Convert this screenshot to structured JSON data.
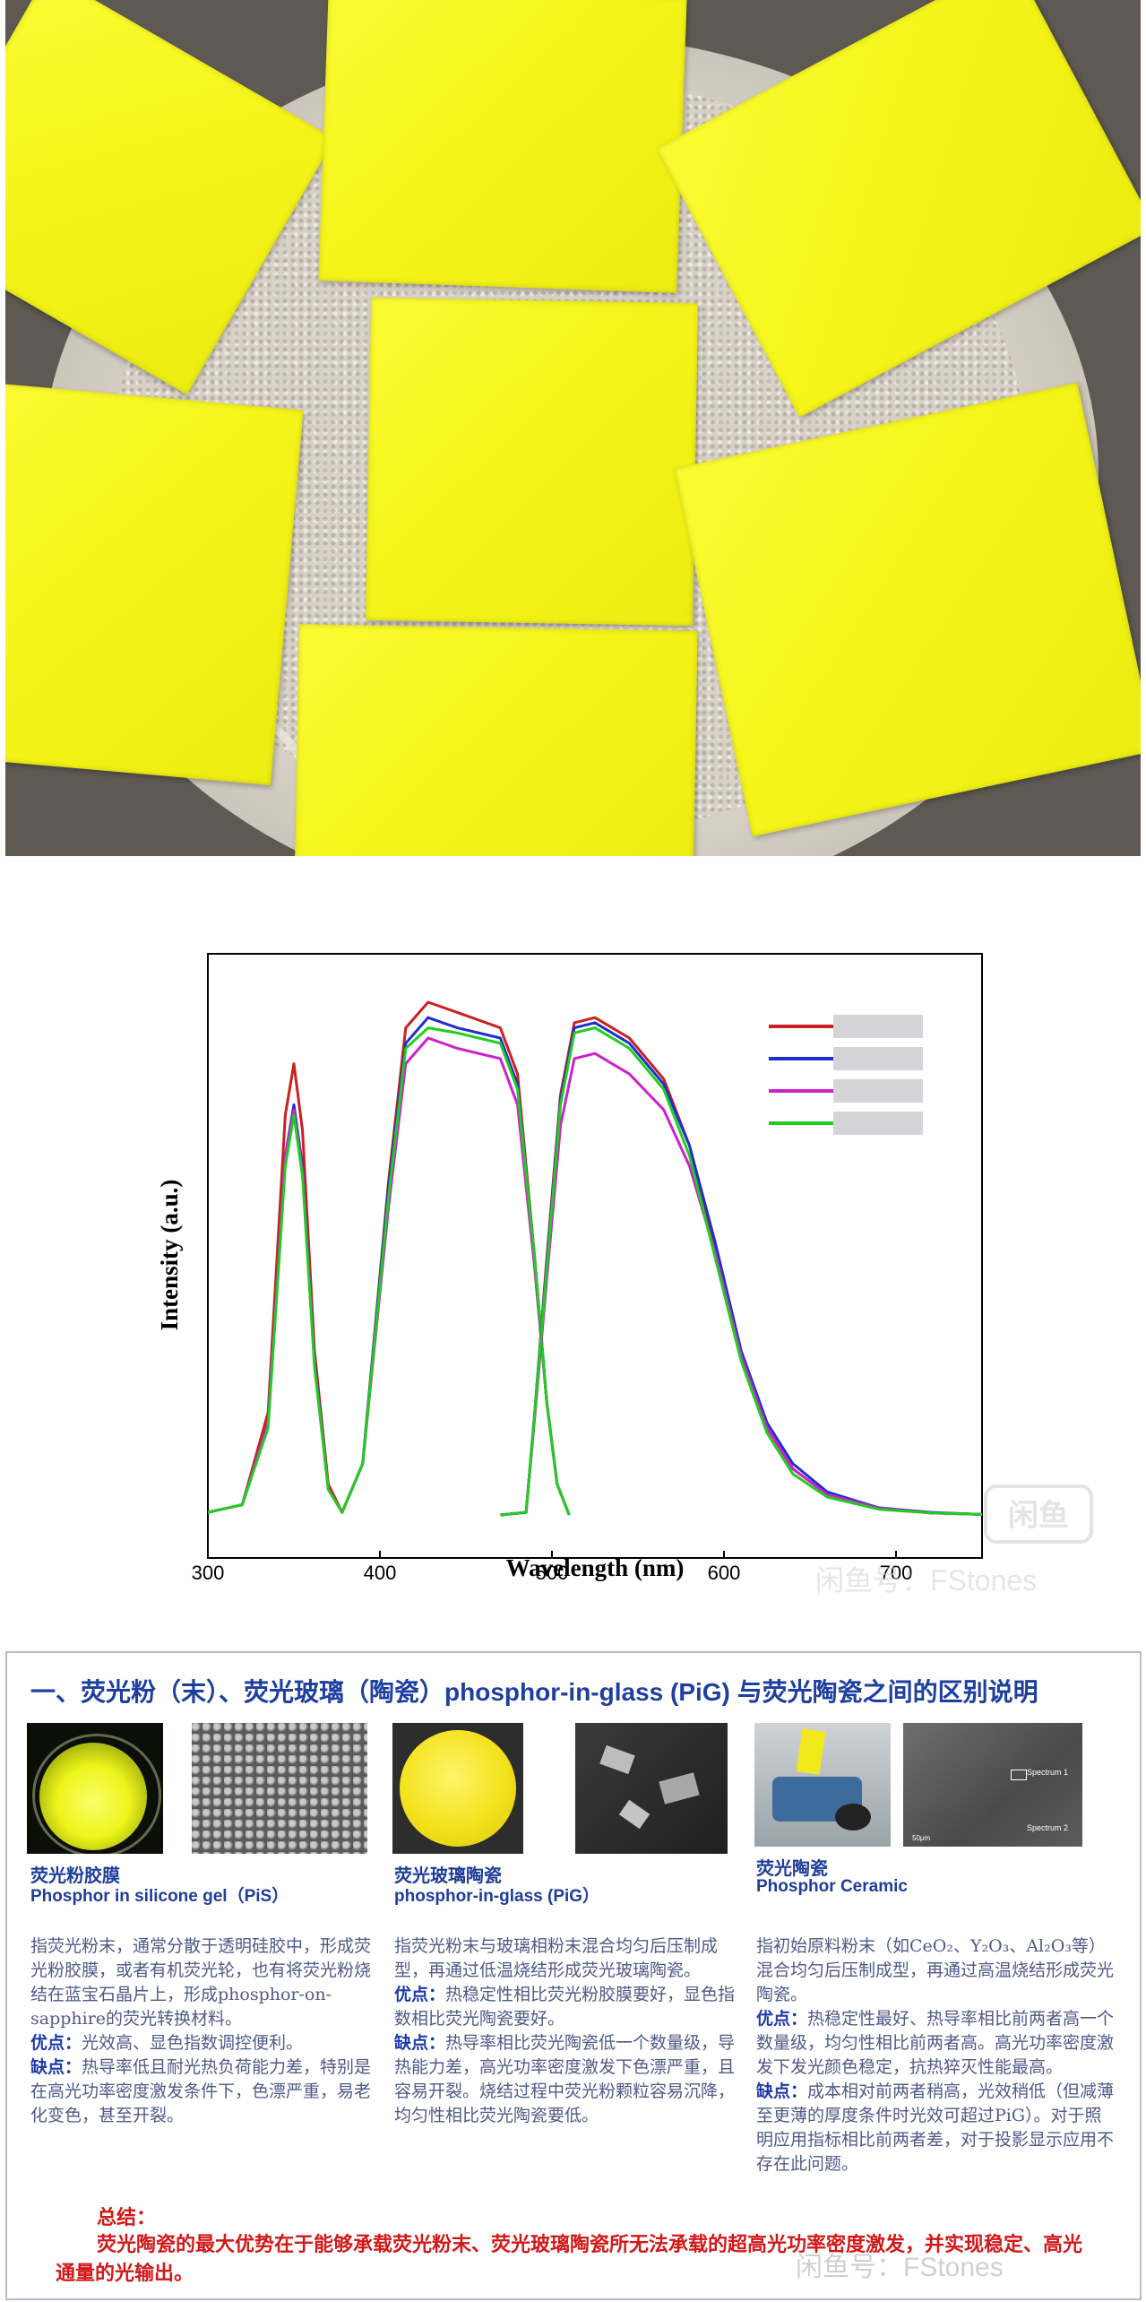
{
  "chart_data": {
    "type": "line",
    "xlabel": "Wavelength (nm)",
    "ylabel": "Intensity (a.u.)",
    "xlim": [
      300,
      750
    ],
    "x_ticks": [
      "300",
      "400",
      "500",
      "600",
      "700"
    ],
    "legend_position": "top-right",
    "legend_labels_blurred": true,
    "series": [
      {
        "color": "#cc1f1f",
        "points": [
          [
            300,
            0.005
          ],
          [
            320,
            0.02
          ],
          [
            335,
            0.2
          ],
          [
            345,
            0.78
          ],
          [
            350,
            0.88
          ],
          [
            355,
            0.75
          ],
          [
            362,
            0.32
          ],
          [
            370,
            0.06
          ],
          [
            378,
            0.005
          ],
          [
            390,
            0.1
          ],
          [
            405,
            0.65
          ],
          [
            415,
            0.95
          ],
          [
            428,
            1.0
          ],
          [
            445,
            0.98
          ],
          [
            470,
            0.95
          ],
          [
            480,
            0.86
          ],
          [
            490,
            0.5
          ],
          [
            497,
            0.22
          ],
          [
            503,
            0.06
          ],
          [
            510,
            0.0
          ]
        ]
      },
      {
        "color": "#1f2fcc",
        "points": [
          [
            300,
            0.005
          ],
          [
            320,
            0.02
          ],
          [
            335,
            0.18
          ],
          [
            345,
            0.7
          ],
          [
            350,
            0.8
          ],
          [
            355,
            0.68
          ],
          [
            362,
            0.3
          ],
          [
            370,
            0.05
          ],
          [
            378,
            0.005
          ],
          [
            390,
            0.1
          ],
          [
            405,
            0.64
          ],
          [
            415,
            0.92
          ],
          [
            428,
            0.97
          ],
          [
            445,
            0.95
          ],
          [
            470,
            0.93
          ],
          [
            480,
            0.84
          ],
          [
            490,
            0.5
          ],
          [
            497,
            0.22
          ],
          [
            503,
            0.06
          ],
          [
            510,
            0.0
          ]
        ]
      },
      {
        "color": "#cc22cc",
        "points": [
          [
            300,
            0.005
          ],
          [
            320,
            0.02
          ],
          [
            335,
            0.18
          ],
          [
            345,
            0.7
          ],
          [
            350,
            0.79
          ],
          [
            355,
            0.67
          ],
          [
            362,
            0.29
          ],
          [
            370,
            0.05
          ],
          [
            378,
            0.005
          ],
          [
            390,
            0.1
          ],
          [
            405,
            0.6
          ],
          [
            415,
            0.88
          ],
          [
            428,
            0.93
          ],
          [
            445,
            0.91
          ],
          [
            470,
            0.89
          ],
          [
            480,
            0.8
          ],
          [
            490,
            0.48
          ],
          [
            497,
            0.22
          ],
          [
            503,
            0.06
          ],
          [
            510,
            0.0
          ]
        ]
      },
      {
        "color": "#22cc22",
        "points": [
          [
            300,
            0.005
          ],
          [
            320,
            0.02
          ],
          [
            335,
            0.17
          ],
          [
            345,
            0.68
          ],
          [
            350,
            0.78
          ],
          [
            355,
            0.66
          ],
          [
            362,
            0.29
          ],
          [
            370,
            0.05
          ],
          [
            378,
            0.005
          ],
          [
            390,
            0.1
          ],
          [
            405,
            0.62
          ],
          [
            415,
            0.91
          ],
          [
            428,
            0.95
          ],
          [
            445,
            0.94
          ],
          [
            470,
            0.92
          ],
          [
            480,
            0.83
          ],
          [
            490,
            0.5
          ],
          [
            497,
            0.22
          ],
          [
            503,
            0.06
          ],
          [
            510,
            0.0
          ]
        ]
      },
      {
        "color": "#cc1f1f",
        "points": [
          [
            470,
            0.0
          ],
          [
            485,
            0.005
          ],
          [
            490,
            0.2
          ],
          [
            497,
            0.5
          ],
          [
            505,
            0.82
          ],
          [
            513,
            0.96
          ],
          [
            525,
            0.97
          ],
          [
            545,
            0.93
          ],
          [
            565,
            0.85
          ],
          [
            580,
            0.72
          ],
          [
            595,
            0.52
          ],
          [
            610,
            0.31
          ],
          [
            625,
            0.17
          ],
          [
            640,
            0.09
          ],
          [
            660,
            0.04
          ],
          [
            690,
            0.012
          ],
          [
            720,
            0.004
          ],
          [
            750,
            0.001
          ]
        ]
      },
      {
        "color": "#1f2fcc",
        "points": [
          [
            470,
            0.0
          ],
          [
            485,
            0.005
          ],
          [
            490,
            0.2
          ],
          [
            497,
            0.49
          ],
          [
            505,
            0.81
          ],
          [
            513,
            0.95
          ],
          [
            525,
            0.96
          ],
          [
            545,
            0.92
          ],
          [
            565,
            0.84
          ],
          [
            580,
            0.72
          ],
          [
            595,
            0.53
          ],
          [
            610,
            0.32
          ],
          [
            625,
            0.18
          ],
          [
            640,
            0.1
          ],
          [
            660,
            0.045
          ],
          [
            690,
            0.014
          ],
          [
            720,
            0.005
          ],
          [
            750,
            0.001
          ]
        ]
      },
      {
        "color": "#cc22cc",
        "points": [
          [
            470,
            0.0
          ],
          [
            485,
            0.005
          ],
          [
            490,
            0.19
          ],
          [
            497,
            0.46
          ],
          [
            505,
            0.76
          ],
          [
            513,
            0.89
          ],
          [
            525,
            0.9
          ],
          [
            545,
            0.86
          ],
          [
            565,
            0.79
          ],
          [
            580,
            0.68
          ],
          [
            595,
            0.51
          ],
          [
            610,
            0.31
          ],
          [
            625,
            0.17
          ],
          [
            640,
            0.09
          ],
          [
            660,
            0.04
          ],
          [
            690,
            0.013
          ],
          [
            720,
            0.004
          ],
          [
            750,
            0.001
          ]
        ]
      },
      {
        "color": "#22cc22",
        "points": [
          [
            470,
            0.0
          ],
          [
            485,
            0.005
          ],
          [
            490,
            0.2
          ],
          [
            497,
            0.48
          ],
          [
            505,
            0.8
          ],
          [
            513,
            0.94
          ],
          [
            525,
            0.95
          ],
          [
            545,
            0.91
          ],
          [
            565,
            0.83
          ],
          [
            580,
            0.7
          ],
          [
            595,
            0.5
          ],
          [
            610,
            0.3
          ],
          [
            625,
            0.16
          ],
          [
            640,
            0.08
          ],
          [
            660,
            0.035
          ],
          [
            690,
            0.011
          ],
          [
            720,
            0.004
          ],
          [
            750,
            0.001
          ]
        ]
      }
    ]
  },
  "chart_watermark": {
    "badge": "闲鱼",
    "text": "闲鱼号：FStones"
  },
  "card": {
    "title": "一、荧光粉（末）、荧光玻璃（陶瓷）phosphor-in-glass (PiG) 与荧光陶瓷之间的区别说明",
    "columns": [
      {
        "name_cn": "荧光粉胶膜",
        "name_en": "Phosphor in silicone gel（PiS）",
        "desc": "指荧光粉末，通常分散于透明硅胶中，形成荧光粉胶膜，或者有机荧光轮，也有将荧光粉烧结在蓝宝石晶片上，形成phosphor-on-sapphire的荧光转换材料。",
        "adv_label": "优点：",
        "adv": "光效高、显色指数调控便利。",
        "dis_label": "缺点：",
        "dis": "热导率低且耐光热负荷能力差，特别是在高光功率密度激发条件下，色漂严重，易老化变色，甚至开裂。"
      },
      {
        "name_cn": "荧光玻璃陶瓷",
        "name_en": "phosphor-in-glass (PiG）",
        "desc": "指荧光粉末与玻璃相粉末混合均匀后压制成型，再通过低温烧结形成荧光玻璃陶瓷。",
        "adv_label": "优点：",
        "adv": "热稳定性相比荧光粉胶膜要好，显色指数相比荧光陶瓷要好。",
        "dis_label": "缺点：",
        "dis": "热导率相比荧光陶瓷低一个数量级，导热能力差，高光功率密度激发下色漂严重，且容易开裂。烧结过程中荧光粉颗粒容易沉降，均匀性相比荧光陶瓷要低。"
      },
      {
        "name_cn": "荧光陶瓷",
        "name_en": "Phosphor Ceramic",
        "desc": "指初始原料粉末（如CeO₂、Y₂O₃、Al₂O₃等）混合均匀后压制成型，再通过高温烧结形成荧光陶瓷。",
        "adv_label": "优点：",
        "adv": "热稳定性最好、热导率相比前两者高一个数量级，均匀性相比前两者高。高光功率密度激发下发光颜色稳定，抗热猝灭性能最高。",
        "dis_label": "缺点：",
        "dis": "成本相对前两者稍高，光效稍低（但减薄至更薄的厚度条件时光效可超过PiG）。对于照明应用指标相比前两者差，对于投影显示应用不存在此问题。"
      }
    ],
    "sem3_labels": [
      "Spectrum 1",
      "Spectrum 2"
    ],
    "sem3_scale": "50μm",
    "summary_label": "总结：",
    "summary": "荧光陶瓷的最大优势在于能够承载荧光粉末、荧光玻璃陶瓷所无法承载的超高光功率密度激发，并实现稳定、高光通量的光输出。",
    "watermark": "闲鱼号：FStones"
  }
}
